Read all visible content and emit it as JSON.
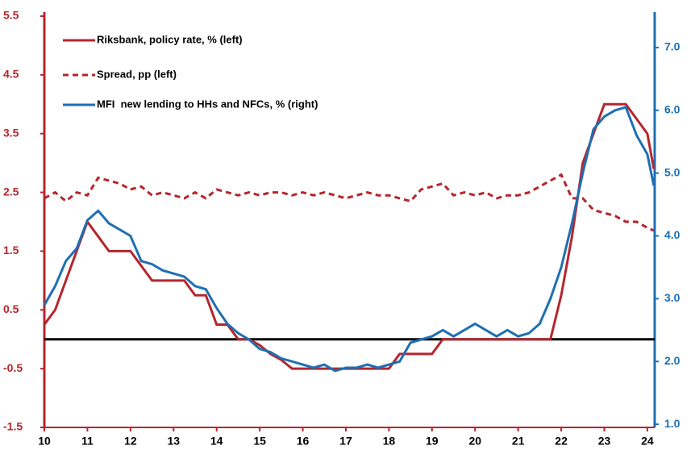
{
  "chart_data": {
    "type": "line",
    "x": [
      10,
      10.25,
      10.5,
      10.75,
      11,
      11.25,
      11.5,
      11.75,
      12,
      12.25,
      12.5,
      12.75,
      13,
      13.25,
      13.5,
      13.75,
      14,
      14.25,
      14.5,
      14.75,
      15,
      15.25,
      15.5,
      15.75,
      16,
      16.25,
      16.5,
      16.75,
      17,
      17.25,
      17.5,
      17.75,
      18,
      18.25,
      18.5,
      18.75,
      19,
      19.25,
      19.5,
      19.75,
      20,
      20.25,
      20.5,
      20.75,
      21,
      21.25,
      21.5,
      21.75,
      22,
      22.25,
      22.5,
      22.75,
      23,
      23.25,
      23.5,
      23.75,
      24,
      24.15
    ],
    "series": [
      {
        "name": "Riksbank, policy rate, % (left)",
        "color": "#b5262e",
        "style": "solid",
        "values": [
          0.25,
          0.5,
          1.0,
          1.5,
          2.0,
          1.75,
          1.5,
          1.5,
          1.5,
          1.25,
          1.0,
          1.0,
          1.0,
          1.0,
          0.75,
          0.75,
          0.25,
          0.25,
          0.0,
          0.0,
          -0.1,
          -0.25,
          -0.35,
          -0.5,
          -0.5,
          -0.5,
          -0.5,
          -0.5,
          -0.5,
          -0.5,
          -0.5,
          -0.5,
          -0.5,
          -0.25,
          -0.25,
          -0.25,
          -0.25,
          0,
          0,
          0,
          0,
          0,
          0,
          0,
          0,
          0,
          0,
          0,
          0.75,
          1.75,
          3.0,
          3.5,
          4.0,
          4.0,
          4.0,
          3.75,
          3.5,
          2.9
        ]
      },
      {
        "name": "Spread, pp (left)",
        "color": "#b5262e",
        "style": "dashed",
        "values": [
          2.4,
          2.5,
          2.35,
          2.5,
          2.45,
          2.75,
          2.7,
          2.65,
          2.55,
          2.6,
          2.45,
          2.5,
          2.45,
          2.4,
          2.5,
          2.4,
          2.55,
          2.5,
          2.45,
          2.5,
          2.45,
          2.5,
          2.5,
          2.45,
          2.5,
          2.45,
          2.5,
          2.45,
          2.4,
          2.45,
          2.5,
          2.45,
          2.45,
          2.4,
          2.35,
          2.55,
          2.6,
          2.65,
          2.45,
          2.5,
          2.45,
          2.5,
          2.4,
          2.45,
          2.45,
          2.5,
          2.6,
          2.7,
          2.8,
          2.4,
          2.4,
          2.2,
          2.15,
          2.1,
          2.0,
          2.0,
          1.9,
          1.85
        ]
      },
      {
        "name": "MFI  new lending to HHs and NFCs, % (right)",
        "color": "#1f6fb2",
        "style": "solid",
        "axis": "y2",
        "values": [
          2.9,
          3.2,
          3.6,
          3.8,
          4.25,
          4.4,
          4.2,
          4.1,
          4.0,
          3.6,
          3.55,
          3.45,
          3.4,
          3.35,
          3.2,
          3.15,
          2.85,
          2.6,
          2.45,
          2.35,
          2.2,
          2.15,
          2.05,
          2.0,
          1.95,
          1.9,
          1.95,
          1.85,
          1.9,
          1.9,
          1.95,
          1.9,
          1.95,
          2.0,
          2.3,
          2.35,
          2.4,
          2.5,
          2.4,
          2.5,
          2.6,
          2.5,
          2.4,
          2.5,
          2.4,
          2.45,
          2.6,
          3.0,
          3.5,
          4.2,
          5.0,
          5.7,
          5.9,
          6.0,
          6.05,
          5.6,
          5.3,
          4.8
        ]
      }
    ],
    "xlim": [
      10,
      24.17
    ],
    "xticks": [
      10,
      11,
      12,
      13,
      14,
      15,
      16,
      17,
      18,
      19,
      20,
      21,
      22,
      23,
      24
    ],
    "ylim": [
      -1.5,
      5.5
    ],
    "yticks": [
      -1.5,
      -0.5,
      0.5,
      1.5,
      2.5,
      3.5,
      4.5,
      5.5
    ],
    "y2lim": [
      0.95,
      7.5
    ],
    "y2ticks": [
      {
        "value": 1,
        "label": "1.0"
      },
      {
        "value": 2,
        "label": "2.0"
      },
      {
        "value": 3,
        "label": "3.0"
      },
      {
        "value": 4,
        "label": "4.0"
      },
      {
        "value": 5,
        "label": "5.0"
      },
      {
        "value": 6,
        "label": "6.0"
      },
      {
        "value": 7,
        "label": "7.0"
      }
    ],
    "hline": 0,
    "legend": "top-left"
  }
}
